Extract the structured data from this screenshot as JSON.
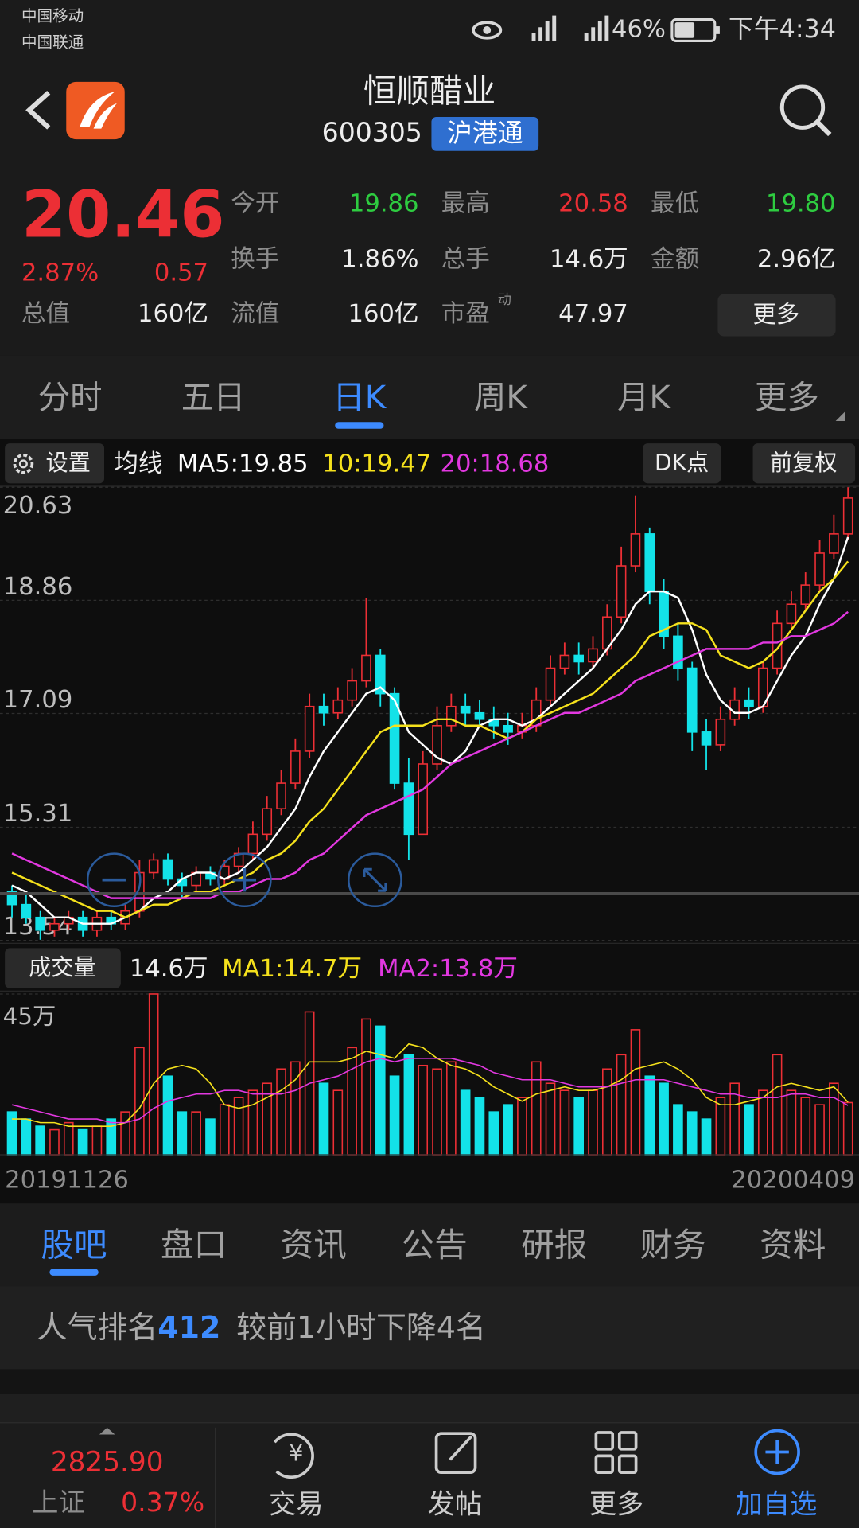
{
  "status_bar": {
    "carrier_1": "中国移动",
    "carrier_2": "中国联通",
    "battery": "46%",
    "time": "下午4:34"
  },
  "header": {
    "name": "恒顺醋业",
    "code": "600305",
    "badge": "沪港通"
  },
  "quote": {
    "price": "20.46",
    "change_pct": "2.87%",
    "change": "0.57",
    "total_value": {
      "label": "总值",
      "value": "160亿"
    },
    "stats": [
      {
        "label": "今开",
        "value": "19.86",
        "color": "#2ecc40"
      },
      {
        "label": "最高",
        "value": "20.58",
        "color": "#ec2f35"
      },
      {
        "label": "最低",
        "value": "19.80",
        "color": "#2ecc40"
      },
      {
        "label": "换手",
        "value": "1.86%",
        "color": "#eeeeee"
      },
      {
        "label": "总手",
        "value": "14.6万",
        "color": "#eeeeee"
      },
      {
        "label": "金额",
        "value": "2.96亿",
        "color": "#eeeeee"
      },
      {
        "label": "流值",
        "value": "160亿",
        "color": "#eeeeee"
      },
      {
        "label": "市盈",
        "value": "47.97",
        "color": "#eeeeee"
      }
    ],
    "pe_mark": "动",
    "more_button": "更多"
  },
  "chart_tabs": {
    "items": [
      "分时",
      "五日",
      "日K",
      "周K",
      "月K",
      "更多"
    ],
    "active": 2
  },
  "chart_data": [
    {
      "type": "candlestick",
      "settings_button": "设置",
      "ma_label": "均线",
      "dk_button": "DK点",
      "adjust_button": "前复权",
      "ylim": [
        13.54,
        20.63
      ],
      "yticks": [
        13.54,
        15.31,
        17.09,
        18.86,
        20.63
      ],
      "grid": true,
      "up_color": "#ec2f35",
      "down_color": "#13e2e8",
      "open": [
        14.3,
        14.1,
        13.9,
        13.7,
        13.8,
        13.9,
        13.7,
        13.9,
        13.8,
        14.0,
        14.6,
        14.8,
        14.5,
        14.4,
        14.6,
        14.5,
        14.7,
        14.9,
        15.2,
        15.6,
        16.0,
        16.5,
        17.2,
        17.1,
        17.3,
        17.6,
        18.0,
        17.4,
        16.0,
        15.2,
        16.3,
        16.9,
        17.2,
        17.1,
        17.0,
        16.9,
        16.8,
        16.9,
        17.3,
        17.8,
        18.0,
        17.9,
        18.1,
        18.6,
        19.4,
        19.9,
        19.0,
        18.3,
        17.8,
        16.8,
        16.6,
        17.0,
        17.3,
        17.2,
        17.8,
        18.5,
        18.8,
        19.1,
        19.6,
        19.9
      ],
      "high": [
        14.4,
        14.3,
        14.0,
        13.9,
        14.0,
        14.0,
        14.0,
        14.0,
        14.1,
        14.8,
        14.9,
        14.9,
        14.6,
        14.7,
        14.7,
        14.8,
        15.0,
        15.4,
        15.8,
        16.2,
        16.7,
        17.4,
        17.4,
        17.5,
        17.8,
        18.9,
        18.1,
        17.5,
        16.4,
        16.5,
        17.2,
        17.4,
        17.4,
        17.3,
        17.2,
        17.1,
        17.1,
        17.5,
        18.0,
        18.2,
        18.2,
        18.3,
        18.8,
        19.7,
        20.5,
        20.0,
        19.2,
        18.5,
        17.9,
        17.0,
        17.2,
        17.5,
        17.5,
        17.9,
        18.7,
        19.0,
        19.3,
        19.8,
        20.2,
        20.63
      ],
      "low": [
        13.9,
        13.8,
        13.55,
        13.6,
        13.7,
        13.6,
        13.6,
        13.7,
        13.7,
        13.9,
        14.5,
        14.4,
        14.2,
        14.3,
        14.4,
        14.4,
        14.6,
        14.8,
        15.1,
        15.5,
        15.9,
        16.4,
        16.9,
        17.0,
        17.2,
        17.5,
        17.2,
        15.9,
        14.8,
        15.2,
        16.2,
        16.8,
        16.9,
        16.9,
        16.7,
        16.6,
        16.7,
        16.8,
        17.2,
        17.7,
        17.7,
        17.8,
        18.0,
        18.5,
        19.3,
        18.8,
        18.1,
        17.6,
        16.5,
        16.2,
        16.5,
        16.9,
        17.0,
        17.1,
        17.7,
        18.4,
        18.7,
        19.0,
        19.5,
        19.8
      ],
      "close": [
        14.1,
        13.9,
        13.7,
        13.8,
        13.9,
        13.7,
        13.9,
        13.8,
        14.0,
        14.6,
        14.8,
        14.5,
        14.4,
        14.6,
        14.5,
        14.7,
        14.9,
        15.2,
        15.6,
        16.0,
        16.5,
        17.2,
        17.1,
        17.3,
        17.6,
        18.0,
        17.4,
        16.0,
        15.2,
        16.3,
        16.9,
        17.2,
        17.1,
        17.0,
        16.9,
        16.8,
        16.9,
        17.3,
        17.8,
        18.0,
        17.9,
        18.1,
        18.6,
        19.4,
        19.9,
        19.0,
        18.3,
        17.8,
        16.8,
        16.6,
        17.0,
        17.3,
        17.2,
        17.8,
        18.5,
        18.8,
        19.1,
        19.6,
        19.9,
        20.46
      ],
      "series": [
        {
          "name": "MA5:19.85",
          "color": "#ffffff",
          "values": [
            14.4,
            14.3,
            14.1,
            13.9,
            13.9,
            13.8,
            13.8,
            13.8,
            13.9,
            14.0,
            14.2,
            14.3,
            14.5,
            14.6,
            14.6,
            14.5,
            14.6,
            14.8,
            15.0,
            15.3,
            15.6,
            16.1,
            16.5,
            16.8,
            17.1,
            17.4,
            17.5,
            17.3,
            16.8,
            16.6,
            16.4,
            16.3,
            16.5,
            16.9,
            17.0,
            17.0,
            16.9,
            17.0,
            17.2,
            17.4,
            17.6,
            17.8,
            18.1,
            18.4,
            18.8,
            19.0,
            19.0,
            18.9,
            18.4,
            17.7,
            17.3,
            17.1,
            17.1,
            17.2,
            17.6,
            18.0,
            18.3,
            18.8,
            19.2,
            19.85
          ]
        },
        {
          "name": "10:19.47",
          "color": "#f5e11c",
          "values": [
            14.6,
            14.5,
            14.4,
            14.3,
            14.2,
            14.1,
            14.0,
            14.0,
            13.9,
            14.0,
            14.1,
            14.1,
            14.2,
            14.3,
            14.3,
            14.4,
            14.5,
            14.6,
            14.8,
            14.9,
            15.1,
            15.4,
            15.6,
            15.9,
            16.2,
            16.5,
            16.8,
            16.9,
            16.9,
            16.9,
            17.0,
            17.0,
            16.9,
            16.9,
            16.8,
            16.7,
            16.8,
            17.0,
            17.1,
            17.2,
            17.3,
            17.4,
            17.6,
            17.8,
            18.0,
            18.3,
            18.4,
            18.5,
            18.5,
            18.4,
            18.0,
            17.9,
            17.8,
            17.9,
            18.1,
            18.4,
            18.7,
            19.0,
            19.2,
            19.47
          ]
        },
        {
          "name": "20:18.68",
          "color": "#e238e0",
          "values": [
            14.9,
            14.8,
            14.7,
            14.6,
            14.5,
            14.4,
            14.3,
            14.2,
            14.2,
            14.2,
            14.2,
            14.2,
            14.2,
            14.2,
            14.2,
            14.3,
            14.3,
            14.4,
            14.5,
            14.5,
            14.6,
            14.8,
            14.9,
            15.1,
            15.3,
            15.5,
            15.6,
            15.7,
            15.8,
            15.9,
            16.1,
            16.3,
            16.4,
            16.5,
            16.6,
            16.7,
            16.8,
            16.9,
            17.0,
            17.1,
            17.1,
            17.2,
            17.3,
            17.4,
            17.6,
            17.7,
            17.8,
            17.9,
            18.0,
            18.1,
            18.1,
            18.1,
            18.1,
            18.2,
            18.2,
            18.3,
            18.3,
            18.4,
            18.5,
            18.68
          ]
        }
      ]
    },
    {
      "type": "bar",
      "title": "成交量",
      "current": "14.6万",
      "ylim": [
        0,
        45
      ],
      "yticks": [
        {
          "value": 45,
          "label": "45万"
        }
      ],
      "x_range_labels": [
        "20191126",
        "20200409"
      ],
      "values": [
        12,
        10,
        8,
        7,
        9,
        7,
        8,
        10,
        12,
        30,
        45,
        22,
        12,
        12,
        10,
        14,
        16,
        18,
        20,
        24,
        26,
        40,
        20,
        18,
        30,
        38,
        36,
        22,
        28,
        25,
        24,
        26,
        18,
        16,
        12,
        14,
        16,
        26,
        20,
        18,
        16,
        18,
        24,
        28,
        35,
        22,
        20,
        14,
        12,
        10,
        16,
        20,
        14,
        18,
        28,
        18,
        16,
        14,
        20,
        14.6
      ],
      "series": [
        {
          "name": "MA1:14.7万",
          "color": "#f5e11c",
          "values": [
            10,
            10,
            9,
            9,
            8,
            8,
            8,
            8,
            9,
            13,
            20,
            24,
            25,
            24,
            20,
            14,
            13,
            14,
            16,
            18,
            21,
            26,
            26,
            26,
            27,
            29,
            28,
            27,
            31,
            30,
            27,
            25,
            24,
            22,
            19,
            17,
            15,
            17,
            18,
            19,
            18,
            18,
            19,
            21,
            24,
            25,
            26,
            24,
            21,
            16,
            14,
            14,
            15,
            16,
            19,
            20,
            19,
            18,
            19,
            14.7
          ]
        },
        {
          "name": "MA2:13.8万",
          "color": "#e238e0",
          "values": [
            14,
            13,
            12,
            11,
            10,
            10,
            10,
            9,
            9,
            10,
            13,
            15,
            16,
            17,
            17,
            18,
            18,
            17,
            17,
            17,
            18,
            20,
            21,
            22,
            24,
            26,
            27,
            26,
            27,
            27,
            27,
            27,
            26,
            25,
            23,
            22,
            21,
            21,
            21,
            20,
            19,
            19,
            19,
            20,
            21,
            21,
            21,
            20,
            19,
            18,
            17,
            17,
            16,
            16,
            16,
            17,
            17,
            16,
            16,
            13.8
          ]
        }
      ]
    }
  ],
  "info_tabs": {
    "items": [
      "股吧",
      "盘口",
      "资讯",
      "公告",
      "研报",
      "财务",
      "资料"
    ],
    "active": 0
  },
  "popularity": {
    "label": "人气排名",
    "rank": "412",
    "change": "较前1小时下降4名"
  },
  "bottom_bar": {
    "index_value": "2825.90",
    "index_name": "上证",
    "index_change": "0.37%",
    "actions": [
      "交易",
      "发帖",
      "更多",
      "加自选"
    ]
  }
}
